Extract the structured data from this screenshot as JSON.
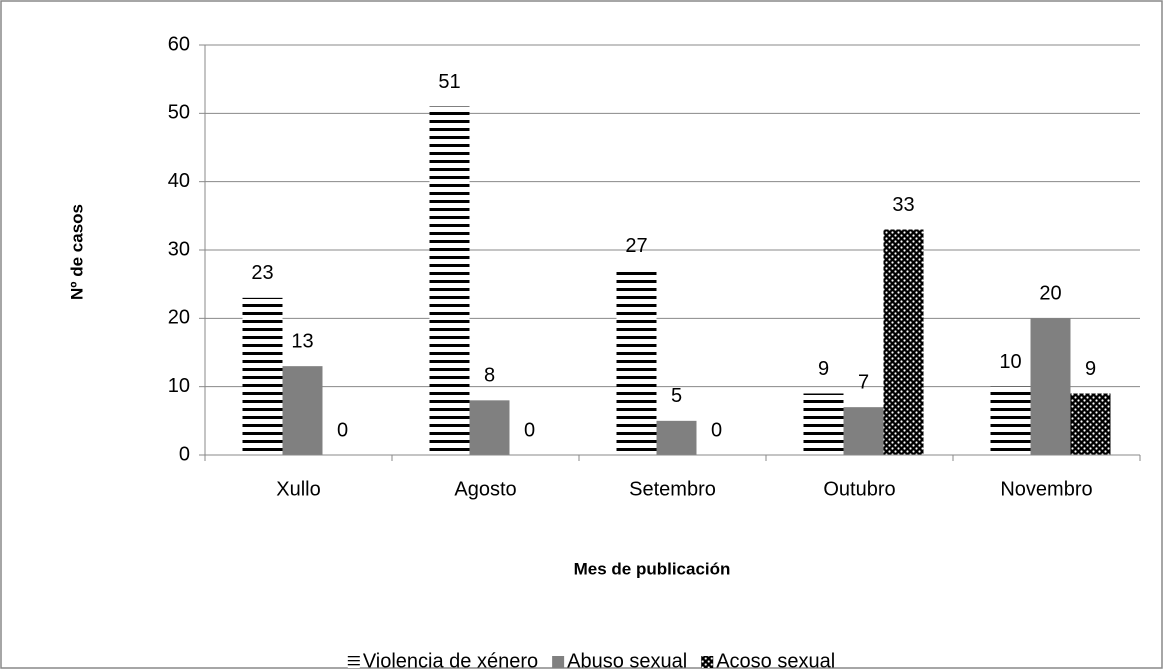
{
  "chart_data": {
    "type": "bar",
    "x_label": "Mes de publicación",
    "y_label": "Nº de casos",
    "categories": [
      "Xullo",
      "Agosto",
      "Setembro",
      "Outubro",
      "Novembro"
    ],
    "series": [
      {
        "name": "Violencia de xénero",
        "color": "#000000",
        "pattern": "horizontal-lines",
        "values": [
          23,
          51,
          27,
          9,
          10
        ]
      },
      {
        "name": "Abuso sexual",
        "color": "#808080",
        "pattern": "solid",
        "values": [
          13,
          8,
          5,
          7,
          20
        ]
      },
      {
        "name": "Acoso sexual",
        "color": "#000000",
        "pattern": "dots",
        "values": [
          0,
          0,
          0,
          33,
          9
        ]
      }
    ],
    "ylim": [
      0,
      60
    ],
    "yticks": [
      0,
      10,
      20,
      30,
      40,
      50,
      60
    ],
    "grid": true,
    "legend": "bottom"
  }
}
